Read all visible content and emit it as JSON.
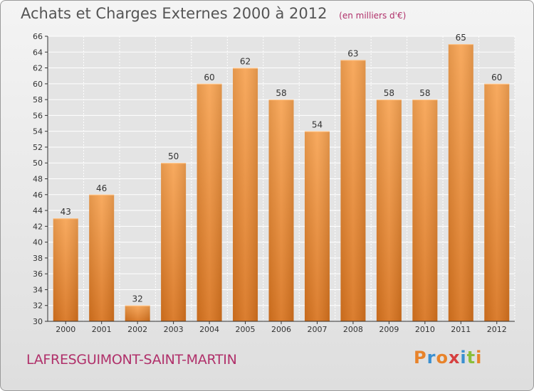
{
  "title": "Achats et Charges Externes 2000 à 2012",
  "subtitle": "(en milliers d'€)",
  "commune": "LAFRESGUIMONT-SAINT-MARTIN",
  "logo": {
    "text": "Proxiti",
    "colors": [
      "#e8832a",
      "#3a8fd0",
      "#e8832a",
      "#d64040",
      "#3a8fd0",
      "#8bbf3a",
      "#e8832a"
    ]
  },
  "colors": {
    "bar": "#f2913f",
    "grid": "#ffffff",
    "axis": "#333333",
    "accent": "#b0306a"
  },
  "chart_data": {
    "type": "bar",
    "categories": [
      "2000",
      "2001",
      "2002",
      "2003",
      "2004",
      "2005",
      "2006",
      "2007",
      "2008",
      "2009",
      "2010",
      "2011",
      "2012"
    ],
    "values": [
      43,
      46,
      32,
      50,
      60,
      62,
      58,
      54,
      63,
      58,
      58,
      65,
      60
    ],
    "ylim": [
      30,
      66
    ],
    "yticks": [
      30,
      32,
      34,
      36,
      38,
      40,
      42,
      44,
      46,
      48,
      50,
      52,
      54,
      56,
      58,
      60,
      62,
      64,
      66
    ],
    "grid": true
  }
}
